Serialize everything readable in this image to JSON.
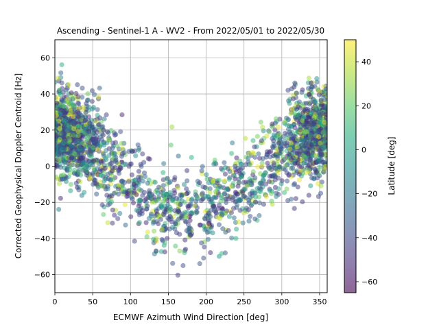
{
  "chart_data": {
    "type": "scatter",
    "title": "Ascending - Sentinel-1 A - WV2 - From 2022/05/01 to 2022/05/30",
    "xlabel": "ECMWF Azimuth Wind Direction [deg]",
    "ylabel": "Corrected Geophysical Doppler Centroid [Hz]",
    "xlim": [
      0,
      360
    ],
    "ylim": [
      -70,
      70
    ],
    "xticks": [
      0,
      50,
      100,
      150,
      200,
      250,
      300,
      350
    ],
    "yticks": [
      -60,
      -40,
      -20,
      0,
      20,
      40,
      60
    ],
    "grid": true,
    "colorbar": {
      "label": "Latitude [deg]",
      "range": [
        -65,
        50
      ],
      "ticks": [
        -60,
        -40,
        -20,
        0,
        20,
        40
      ],
      "colormap": "viridis"
    },
    "marker_alpha": 0.5,
    "cluster_summary": [
      {
        "x": 0,
        "y": 20
      },
      {
        "x": 45,
        "y": 15
      },
      {
        "x": 90,
        "y": -5
      },
      {
        "x": 135,
        "y": -22
      },
      {
        "x": 180,
        "y": -25
      },
      {
        "x": 225,
        "y": -20
      },
      {
        "x": 270,
        "y": -5
      },
      {
        "x": 315,
        "y": 15
      },
      {
        "x": 360,
        "y": 20
      }
    ]
  }
}
